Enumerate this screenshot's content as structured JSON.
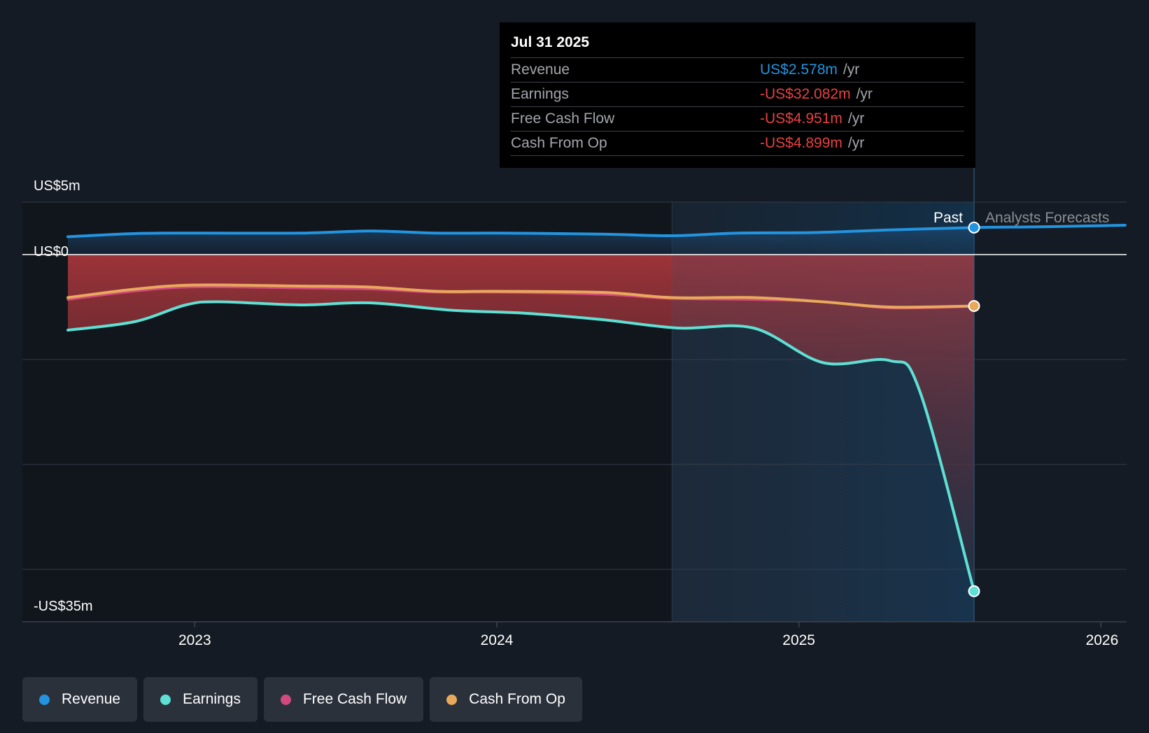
{
  "tooltip": {
    "date": "Jul 31 2025",
    "rows": [
      {
        "label": "Revenue",
        "value": "US$2.578m",
        "unit": "/yr",
        "color": "#2394df"
      },
      {
        "label": "Earnings",
        "value": "-US$32.082m",
        "unit": "/yr",
        "color": "#e64141"
      },
      {
        "label": "Free Cash Flow",
        "value": "-US$4.951m",
        "unit": "/yr",
        "color": "#e64141"
      },
      {
        "label": "Cash From Op",
        "value": "-US$4.899m",
        "unit": "/yr",
        "color": "#e64141"
      }
    ]
  },
  "zones": {
    "past": "Past",
    "forecast": "Analysts Forecasts"
  },
  "legend": [
    {
      "label": "Revenue",
      "color": "#2394df"
    },
    {
      "label": "Earnings",
      "color": "#5ee0d4"
    },
    {
      "label": "Free Cash Flow",
      "color": "#d1497f"
    },
    {
      "label": "Cash From Op",
      "color": "#e8a95a"
    }
  ],
  "chart_data": {
    "type": "line",
    "title": "",
    "xlabel": "",
    "ylabel": "",
    "unit": "US$m",
    "y_tick_labels": [
      {
        "value": 5,
        "label": "US$5m"
      },
      {
        "value": 0,
        "label": "US$0"
      },
      {
        "value": -35,
        "label": "-US$35m"
      }
    ],
    "ylim": [
      -35,
      5
    ],
    "y_gridlines": [
      5,
      -10,
      -20,
      -30
    ],
    "x_ticks": [
      {
        "value": 2023.0,
        "label": "2023"
      },
      {
        "value": 2024.0,
        "label": "2024"
      },
      {
        "value": 2025.0,
        "label": "2025"
      },
      {
        "value": 2026.0,
        "label": "2026"
      }
    ],
    "xlim": [
      2022.45,
      2026.08
    ],
    "highlight_start": 2024.58,
    "past_end": 2025.58,
    "series": [
      {
        "name": "Revenue",
        "color": "#2394df",
        "x": [
          2022.58,
          2022.8,
          2023.0,
          2023.35,
          2023.58,
          2023.8,
          2024.0,
          2024.35,
          2024.58,
          2024.8,
          2025.05,
          2025.3,
          2025.58,
          2025.8,
          2026.08
        ],
        "y": [
          1.7,
          2.0,
          2.05,
          2.05,
          2.25,
          2.05,
          2.05,
          1.95,
          1.8,
          2.05,
          2.1,
          2.35,
          2.578,
          2.65,
          2.8
        ]
      },
      {
        "name": "Earnings",
        "color": "#5ee0d4",
        "x": [
          2022.58,
          2022.8,
          2022.97,
          2023.08,
          2023.35,
          2023.58,
          2023.85,
          2024.1,
          2024.35,
          2024.6,
          2024.85,
          2025.08,
          2025.3,
          2025.4,
          2025.58
        ],
        "y": [
          -7.2,
          -6.4,
          -4.8,
          -4.5,
          -4.8,
          -4.6,
          -5.3,
          -5.6,
          -6.2,
          -7.0,
          -7.0,
          -10.3,
          -10.1,
          -13.0,
          -32.082
        ]
      },
      {
        "name": "Free Cash Flow",
        "color": "#d1497f",
        "x": [
          2022.58,
          2022.8,
          2023.0,
          2023.35,
          2023.58,
          2023.8,
          2024.0,
          2024.35,
          2024.58,
          2024.85,
          2025.08,
          2025.3,
          2025.58
        ],
        "y": [
          -4.3,
          -3.5,
          -3.1,
          -3.2,
          -3.3,
          -3.6,
          -3.6,
          -3.8,
          -4.2,
          -4.3,
          -4.5,
          -5.1,
          -4.951
        ]
      },
      {
        "name": "Cash From Op",
        "color": "#e8a95a",
        "x": [
          2022.58,
          2022.8,
          2023.0,
          2023.35,
          2023.58,
          2023.8,
          2024.0,
          2024.35,
          2024.58,
          2024.85,
          2025.08,
          2025.3,
          2025.58
        ],
        "y": [
          -4.1,
          -3.3,
          -2.9,
          -3.0,
          -3.1,
          -3.5,
          -3.5,
          -3.6,
          -4.1,
          -4.1,
          -4.5,
          -5.0,
          -4.899
        ]
      }
    ]
  }
}
